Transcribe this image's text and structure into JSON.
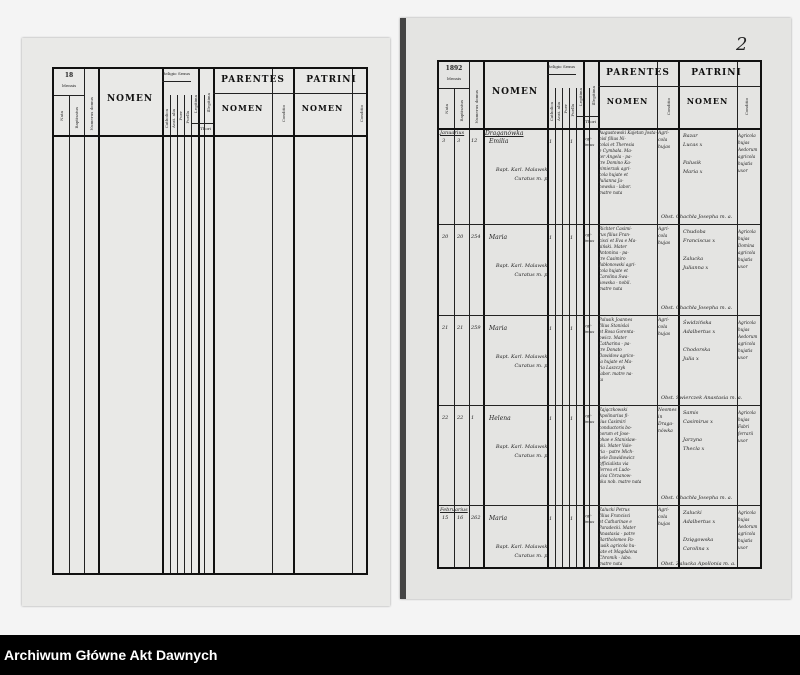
{
  "footer": {
    "archive_name": "Archiwum Główne Akt Dawnych"
  },
  "left_page": {
    "year": "18",
    "header": {
      "mensis": "Mensis",
      "nata": "Nata",
      "baptisatus": "Baptisatus",
      "numerus_domus": "Numerus domus",
      "nomen": "NOMEN",
      "religio": "Religio",
      "catholica": "Catholica",
      "acat_alia": "Acat. alia",
      "sexus": "Sexus",
      "puer": "Puer",
      "puella": "Puella",
      "legitima": "Legitima",
      "illegitima": "Illegitima",
      "thori": "Thori",
      "parentes": "PARENTES",
      "parentes_nomen": "NOMEN",
      "parentes_conditio": "Conditio",
      "patrini": "PATRINI",
      "patrini_nomen": "NOMEN",
      "patrini_conditio": "Conditio"
    }
  },
  "right_page": {
    "page_number": "2",
    "year": "1892",
    "header": {
      "mensis": "Mensis",
      "nata": "Nata",
      "baptisatus": "Baptisatus",
      "numerus_domus": "Numerus domus",
      "nomen": "NOMEN",
      "religio": "Religio",
      "catholica": "Catholica",
      "acat_alia": "Acat. alia",
      "sexus": "Sexus",
      "puer": "Puer",
      "puella": "Puella",
      "legitima": "Legitima",
      "illegitima": "Illegitima",
      "thori": "Thori",
      "parentes": "PARENTES",
      "parentes_nomen": "NOMEN",
      "parentes_conditio": "Conditio",
      "patrini": "PATRINI",
      "patrini_nomen": "NOMEN",
      "patrini_conditio": "Conditio"
    },
    "rows": [
      {
        "month": "Januarius",
        "nata": "3",
        "bapt": "3",
        "domus": "12",
        "village": "Draganówka",
        "name": "Emilia",
        "baptizer": "Bapt. Karl. Malawski\nCuratus m. p.",
        "catholica": "1",
        "puella": "1",
        "legitimus": "legi-\ntimus",
        "parents": "Augustowski Kajetan Josta-\nnisl filius Ni-\ncolai et Theresia\ne Cymbała. Ma-\nter Angela - pa-\ntre Domino Ka-\nzimierzak agri-\ncola hujate et\nJulianna Ja-\nnowska - labor.\nmatre nata",
        "parents_cond": "Agri-\ncola\nhujas",
        "godparents": "Bazar\nLucas x\n\nPalusik\nMaria x",
        "godparents_cond": "Agricola\nhujas\nAedorum\nagricola\nhujatis\nuxor",
        "obstetrix": "Obst. Chachła Josepha m. a."
      },
      {
        "month": "",
        "nata": "20",
        "bapt": "20",
        "domus": "254",
        "village": "",
        "name": "Maria",
        "baptizer": "Bapt. Karl. Malawski\nCuratus m. p.",
        "catholica": "1",
        "puella": "1",
        "legitimus": "legi-\ntimus",
        "parents": "Richter Casimi-\nrus filius Fran-\ncisci et Eva e Ma-\nsiński. Mater\nAntonina - pa-\ntre Casimiro\nJabłonowski agri-\ncola hujate et\nCarolina Swa-\nkowska - nobil.\nmatre nata",
        "parents_cond": "Agri-\ncola\nhujas",
        "godparents": "Chudoba\nFranciscus x\n\nZalucka\nJulianna x",
        "godparents_cond": "Agricola\nhujas\nDomina\nagricola\nhujatis\nuxor",
        "obstetrix": "Obst. Chachła Josepha m. a."
      },
      {
        "month": "",
        "nata": "21",
        "bapt": "21",
        "domus": "259",
        "village": "",
        "name": "Maria",
        "baptizer": "Bapt. Karl. Malawski\nCuratus m. p.",
        "catholica": "1",
        "puella": "1",
        "legitimus": "legi-\ntimus",
        "parents": "Palusik Joannes\nfilius Stanislai\net Rosa Gorenta-\nowicz. Mater\nCatharina - pa-\ntre Donato\nDawidow agrico-\nla hujate et Ma-\nria Laszczyk\nlabor. matre na-\nta",
        "parents_cond": "Agri-\ncola\nhujas",
        "godparents": "Świdzińska\nAdalbertus x\n\nChodorska\nJulia x",
        "godparents_cond": "Agricola\nhujas\nAedorum\nagricola\nhujatis\nuxor",
        "obstetrix": "Obst. Świerczek Anastasia m. a."
      },
      {
        "month": "",
        "nata": "22",
        "bapt": "22",
        "domus": "1",
        "village": "",
        "name": "Helena",
        "baptizer": "Bapt. Karl. Malawski\nCuratus m. p.",
        "catholica": "1",
        "puella": "1",
        "legitimus": "legi-\ntimus",
        "parents": "Zajączkowski\nApolinarius fi-\nlius Casimiri\nconductoris bo-\nnorum et Jose-\nphae e Stanislaw-\nski. Mater Vale-\nria - patre Mich-\naele Dawidowicz\nofficialista via\nferrea et Ludo-\nvica Chrzanow-\nska nob. matre nata",
        "parents_cond": "Neomes\nin\nDraga-\nnówka",
        "godparents": "Samis\nCasimirus x\n\nJarzyna\nThecla x",
        "godparents_cond": "Agricola\nhujas\nFabri\nferrarii\nuxor",
        "obstetrix": "Obst. Chachła Josepha m. a."
      },
      {
        "month": "Februarius",
        "nata": "15",
        "bapt": "16",
        "domus": "262",
        "village": "",
        "name": "Maria",
        "baptizer": "Bapt. Karl. Malawski\nCuratus m. p.",
        "catholica": "1",
        "puella": "1",
        "legitimus": "legi-\ntimus",
        "parents": "Zalucki Petrus\nfilius Francisci\net Catharinae e\nParadecki. Mater\nAnastasia - patre\nBartholomeo Pa-\nlusik agricola hu-\njate et Magdalena\nChromik - labo.\nmatre nata",
        "parents_cond": "Agri-\ncola\nhujas",
        "godparents": "Zalucki\nAdalbertus x\n\nDzięgowska\nCarolina x",
        "godparents_cond": "Agricola\nhujas\nAedorum\nagricola\nhujatis\nuxor",
        "obstetrix": "Obst. Zalucka Apollonia m. a."
      }
    ]
  }
}
